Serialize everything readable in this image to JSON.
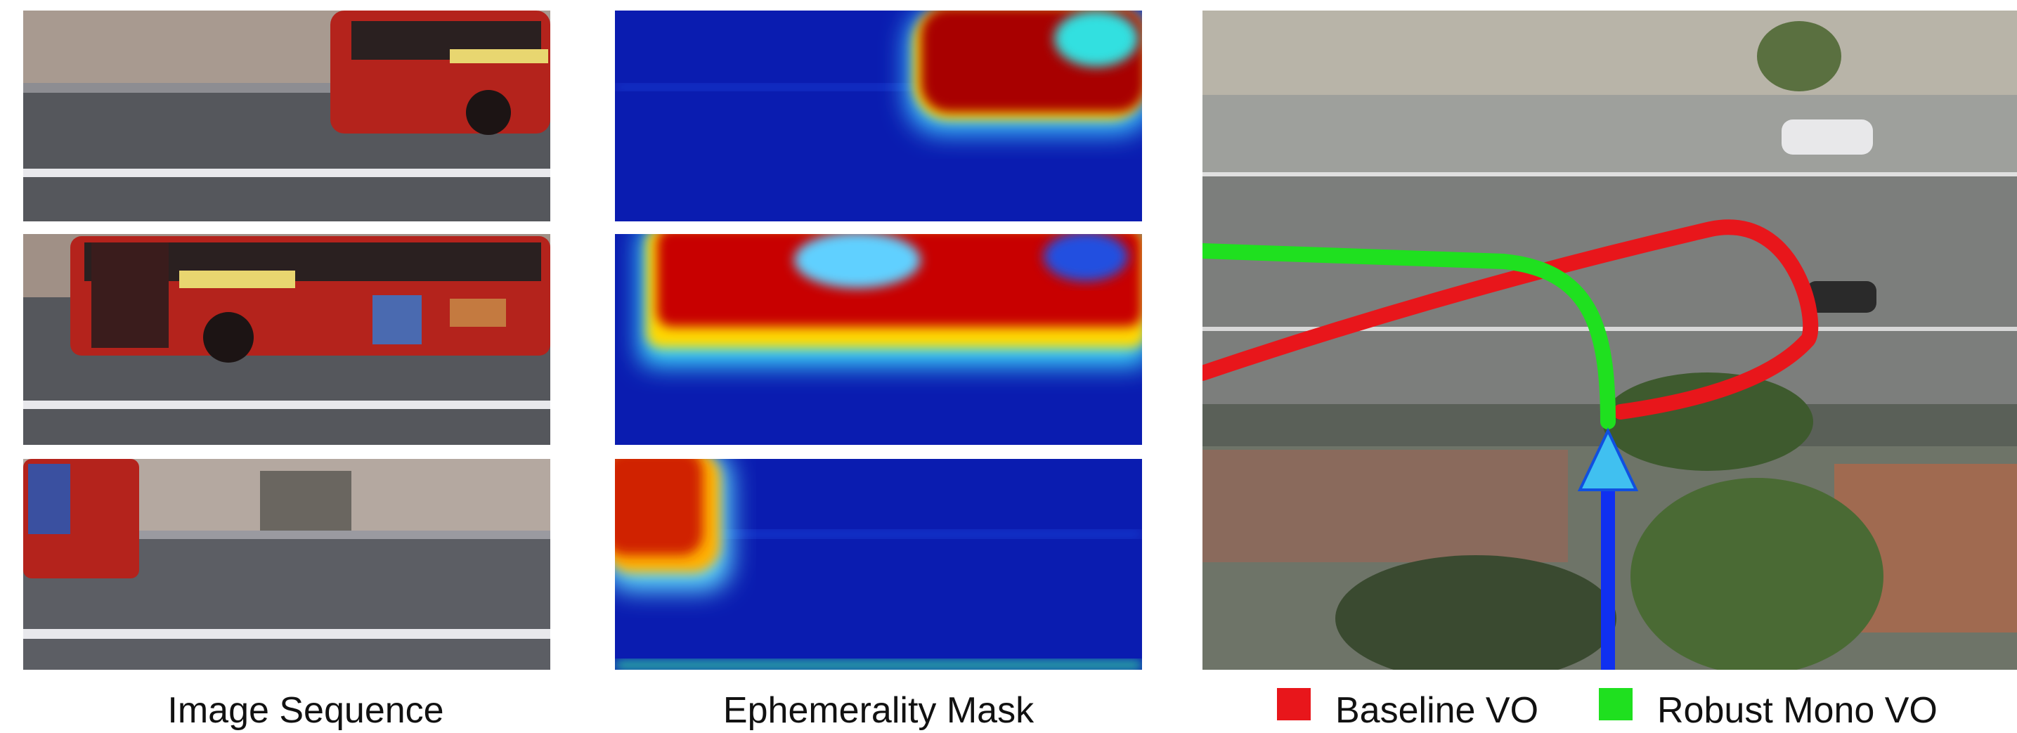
{
  "panels": [
    {
      "caption": "Image Sequence"
    },
    {
      "caption": "Ephemerality Mask"
    }
  ],
  "legend": [
    {
      "label": "Baseline VO",
      "color": "#e8161b"
    },
    {
      "label": "Robust Mono VO",
      "color": "#1fe01f"
    }
  ]
}
